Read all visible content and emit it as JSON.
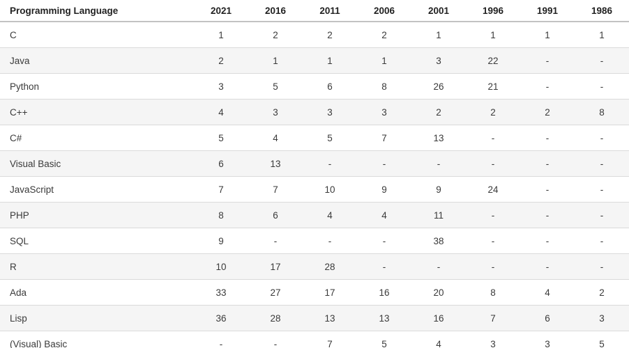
{
  "chart_data": {
    "type": "table",
    "columns": [
      "Programming Language",
      "2021",
      "2016",
      "2011",
      "2006",
      "2001",
      "1996",
      "1991",
      "1986"
    ],
    "rows": [
      {
        "language": "C",
        "ranks": [
          "1",
          "2",
          "2",
          "2",
          "1",
          "1",
          "1",
          "1"
        ]
      },
      {
        "language": "Java",
        "ranks": [
          "2",
          "1",
          "1",
          "1",
          "3",
          "22",
          "-",
          "-"
        ]
      },
      {
        "language": "Python",
        "ranks": [
          "3",
          "5",
          "6",
          "8",
          "26",
          "21",
          "-",
          "-"
        ]
      },
      {
        "language": "C++",
        "ranks": [
          "4",
          "3",
          "3",
          "3",
          "2",
          "2",
          "2",
          "8"
        ]
      },
      {
        "language": "C#",
        "ranks": [
          "5",
          "4",
          "5",
          "7",
          "13",
          "-",
          "-",
          "-"
        ]
      },
      {
        "language": "Visual Basic",
        "ranks": [
          "6",
          "13",
          "-",
          "-",
          "-",
          "-",
          "-",
          "-"
        ]
      },
      {
        "language": "JavaScript",
        "ranks": [
          "7",
          "7",
          "10",
          "9",
          "9",
          "24",
          "-",
          "-"
        ]
      },
      {
        "language": "PHP",
        "ranks": [
          "8",
          "6",
          "4",
          "4",
          "11",
          "-",
          "-",
          "-"
        ]
      },
      {
        "language": "SQL",
        "ranks": [
          "9",
          "-",
          "-",
          "-",
          "38",
          "-",
          "-",
          "-"
        ]
      },
      {
        "language": "R",
        "ranks": [
          "10",
          "17",
          "28",
          "-",
          "-",
          "-",
          "-",
          "-"
        ]
      },
      {
        "language": "Ada",
        "ranks": [
          "33",
          "27",
          "17",
          "16",
          "20",
          "8",
          "4",
          "2"
        ]
      },
      {
        "language": "Lisp",
        "ranks": [
          "36",
          "28",
          "13",
          "13",
          "16",
          "7",
          "6",
          "3"
        ]
      },
      {
        "language": "(Visual) Basic",
        "ranks": [
          "-",
          "-",
          "7",
          "5",
          "4",
          "3",
          "3",
          "5"
        ]
      }
    ],
    "layout": {
      "striped_rows": "even",
      "grid": "horizontal-only"
    },
    "colors": {
      "background": "#ffffff",
      "stripe": "#f5f5f5",
      "row_border": "#dadada",
      "header_border": "#c2c2c2",
      "header_text": "#222222",
      "body_text": "#3a3a3a"
    }
  }
}
